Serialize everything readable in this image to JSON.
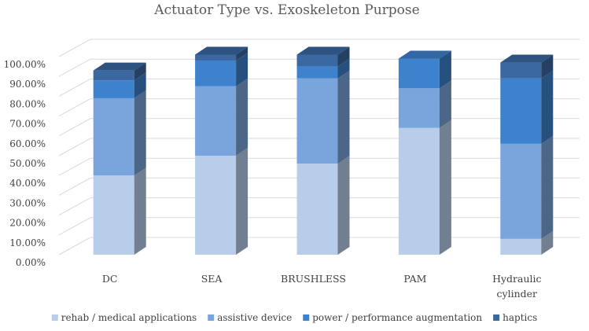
{
  "chart_data": {
    "type": "bar",
    "subtype": "stacked-3d",
    "title": "Actuator Type vs. Exoskeleton Purpose",
    "categories": [
      "DC",
      "SEA",
      "BRUSHLESS",
      "PAM",
      "Hydraulic cylinder"
    ],
    "series": [
      {
        "name": "rehab / medical applications",
        "color": "#b8cde9",
        "values": [
          40,
          50,
          46,
          64,
          8
        ]
      },
      {
        "name": "assistive device",
        "color": "#7aa5dc",
        "values": [
          39,
          35,
          43,
          20,
          48
        ]
      },
      {
        "name": "power / performance augmentation",
        "color": "#3e81cc",
        "values": [
          9,
          13,
          6,
          15,
          33
        ]
      },
      {
        "name": "haptics",
        "color": "#3b68a0",
        "values": [
          5,
          3,
          6,
          0,
          8
        ]
      }
    ],
    "y_ticks": [
      "0.00%",
      "10.00%",
      "20.00%",
      "30.00%",
      "40.00%",
      "50.00%",
      "60.00%",
      "70.00%",
      "80.00%",
      "90.00%",
      "100.00%"
    ],
    "ylim": [
      0,
      100
    ],
    "grid": true,
    "legend_position": "bottom"
  }
}
